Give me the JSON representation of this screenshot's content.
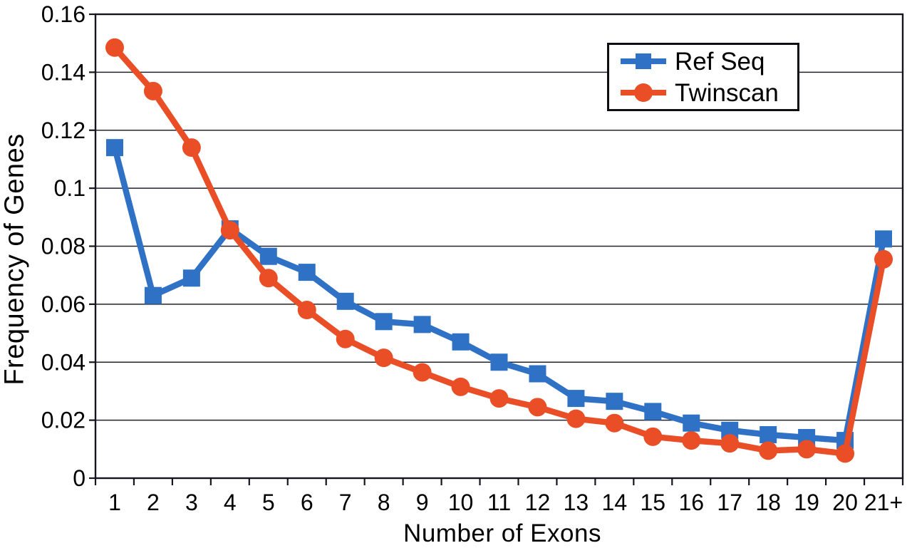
{
  "chart_data": {
    "type": "line",
    "title": "",
    "xlabel": "Number of Exons",
    "ylabel": "Frequency of Genes",
    "categories": [
      "1",
      "2",
      "3",
      "4",
      "5",
      "6",
      "7",
      "8",
      "9",
      "10",
      "11",
      "12",
      "13",
      "14",
      "15",
      "16",
      "17",
      "18",
      "19",
      "20",
      "21+"
    ],
    "series": [
      {
        "name": "Ref Seq",
        "color": "#2e71c5",
        "marker": "square",
        "values": [
          0.114,
          0.063,
          0.069,
          0.086,
          0.0765,
          0.071,
          0.061,
          0.054,
          0.053,
          0.047,
          0.04,
          0.036,
          0.0275,
          0.0265,
          0.023,
          0.019,
          0.0165,
          0.015,
          0.014,
          0.013,
          0.0825
        ]
      },
      {
        "name": "Twinscan",
        "color": "#e94e26",
        "marker": "circle",
        "values": [
          0.1485,
          0.1335,
          0.114,
          0.0855,
          0.069,
          0.058,
          0.048,
          0.0415,
          0.0365,
          0.0315,
          0.0275,
          0.0245,
          0.0205,
          0.019,
          0.0143,
          0.013,
          0.012,
          0.0095,
          0.01,
          0.0085,
          0.0755
        ]
      }
    ],
    "ylim": [
      0,
      0.16
    ],
    "ytick_step": 0.02,
    "ytick_labels": [
      "0",
      "0.02",
      "0.04",
      "0.06",
      "0.08",
      "0.1",
      "0.12",
      "0.14",
      "0.16"
    ],
    "grid": true,
    "legend_position": "top-right"
  },
  "style": {
    "axis_color": "#15151f",
    "grid_color": "#23232d",
    "text_color": "#000000",
    "background": "#ffffff"
  }
}
